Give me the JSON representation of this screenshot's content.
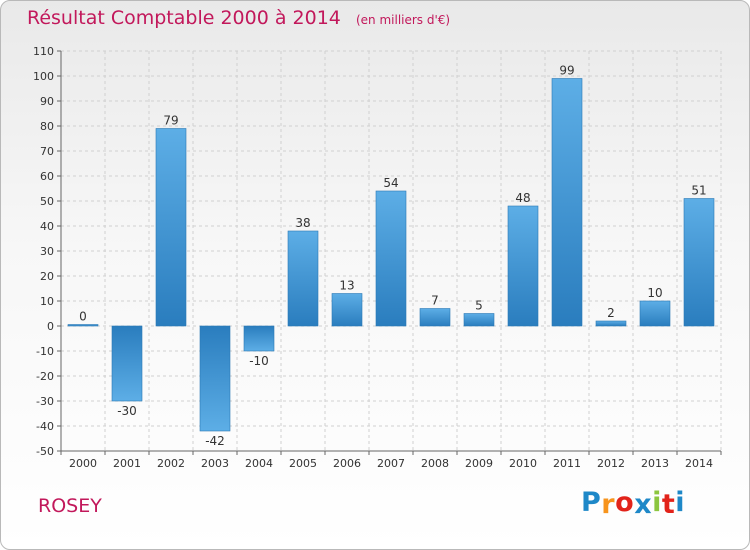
{
  "header": {
    "title": "Résultat Comptable 2000 à 2014",
    "unit": "(en milliers d'€)"
  },
  "footer": {
    "commune": "ROSEY"
  },
  "logo": {
    "letters": [
      "P",
      "r",
      "o",
      "x",
      "i",
      "t",
      "i"
    ],
    "colors": [
      "#1e88c8",
      "#f7941d",
      "#e2231a",
      "#1e88c8",
      "#8cc63f",
      "#e2231a",
      "#1e88c8"
    ]
  },
  "chart_data": {
    "type": "bar",
    "title": "Résultat Comptable 2000 à 2014",
    "subtitle": "(en milliers d'€)",
    "categories": [
      "2000",
      "2001",
      "2002",
      "2003",
      "2004",
      "2005",
      "2006",
      "2007",
      "2008",
      "2009",
      "2010",
      "2011",
      "2012",
      "2013",
      "2014"
    ],
    "values": [
      0,
      -30,
      79,
      -42,
      -10,
      38,
      13,
      54,
      7,
      5,
      48,
      99,
      2,
      10,
      51
    ],
    "ylim": [
      -50,
      110
    ],
    "yticks": [
      -50,
      -40,
      -30,
      -20,
      -10,
      0,
      10,
      20,
      30,
      40,
      50,
      60,
      70,
      80,
      90,
      100,
      110
    ],
    "grid": true,
    "bar_color_light": "#5daee6",
    "bar_color_dark": "#2a7dbe"
  }
}
